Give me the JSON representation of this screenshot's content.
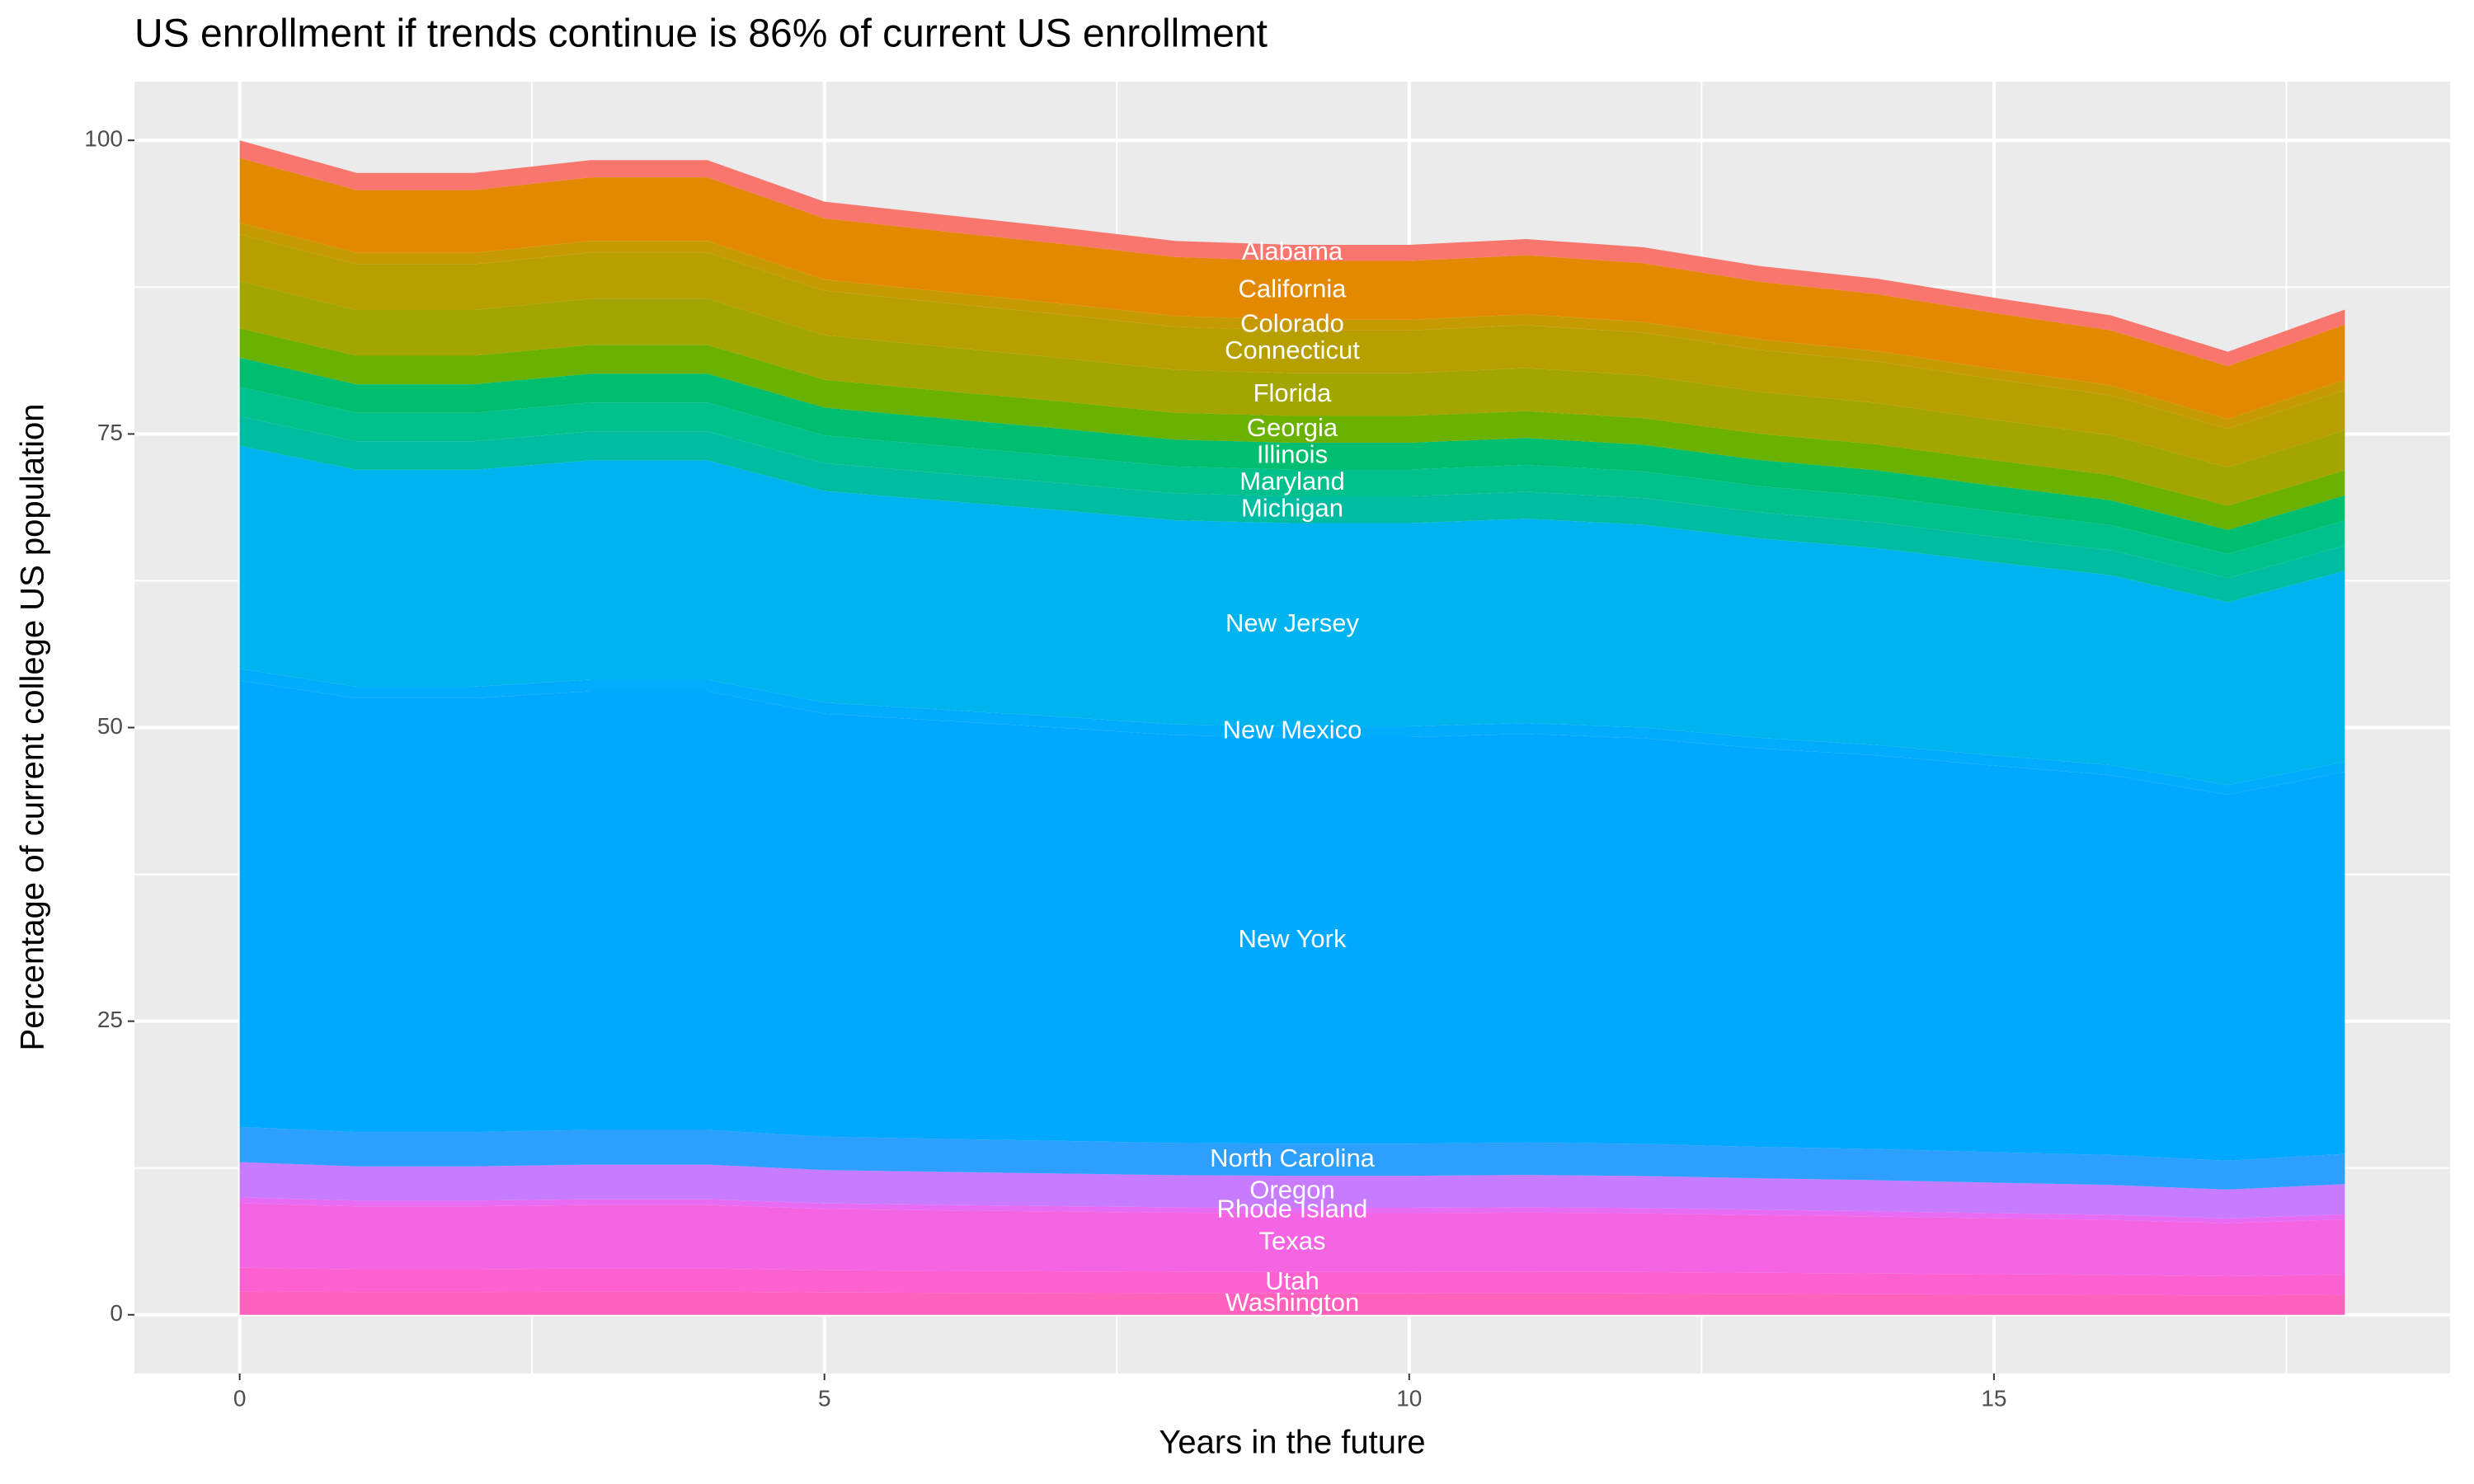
{
  "chart_data": {
    "type": "stacked_area",
    "title": "US enrollment if trends continue is 86% of current US enrollment",
    "x_label": "Years in the future",
    "y_label": "Percentage of current college US population",
    "x": [
      0,
      1,
      2,
      3,
      4,
      5,
      6,
      7,
      8,
      9,
      10,
      11,
      12,
      13,
      14,
      15,
      16,
      17,
      18
    ],
    "xlim": [
      -0.9,
      18.9
    ],
    "xticks": [
      0,
      5,
      10,
      15
    ],
    "ylim": [
      -5,
      105
    ],
    "yticks": [
      0,
      25,
      50,
      75,
      100
    ],
    "grid": true,
    "label_x": 9,
    "series": [
      {
        "name": "Washington",
        "color": "#FF62BC",
        "values": [
          2,
          1.94,
          1.94,
          1.97,
          1.97,
          1.9,
          1.87,
          1.85,
          1.83,
          1.82,
          1.82,
          1.83,
          1.82,
          1.79,
          1.76,
          1.73,
          1.7,
          1.64,
          1.71
        ]
      },
      {
        "name": "Utah",
        "color": "#FD61D1",
        "values": [
          2,
          1.94,
          1.94,
          1.97,
          1.97,
          1.9,
          1.87,
          1.85,
          1.83,
          1.82,
          1.82,
          1.83,
          1.82,
          1.79,
          1.76,
          1.73,
          1.7,
          1.64,
          1.71
        ]
      },
      {
        "name": "Texas",
        "color": "#F564E3",
        "values": [
          5.5,
          5.35,
          5.35,
          5.41,
          5.41,
          5.21,
          5.15,
          5.09,
          5.03,
          5.01,
          5.01,
          5.04,
          5,
          4.91,
          4.85,
          4.76,
          4.68,
          4.51,
          4.71
        ]
      },
      {
        "name": "Rhode Island",
        "color": "#E76BF3",
        "values": [
          0.5,
          0.49,
          0.49,
          0.49,
          0.49,
          0.47,
          0.47,
          0.46,
          0.46,
          0.46,
          0.46,
          0.46,
          0.45,
          0.45,
          0.44,
          0.43,
          0.43,
          0.41,
          0.43
        ]
      },
      {
        "name": "Oregon",
        "color": "#C77CFF",
        "values": [
          3,
          2.92,
          2.92,
          2.95,
          2.95,
          2.84,
          2.81,
          2.78,
          2.74,
          2.73,
          2.73,
          2.75,
          2.73,
          2.68,
          2.65,
          2.6,
          2.55,
          2.46,
          2.57
        ]
      },
      {
        "name": "North Carolina",
        "color": "#2C9FFF",
        "values": [
          3,
          2.92,
          2.92,
          2.95,
          2.95,
          2.84,
          2.81,
          2.78,
          2.74,
          2.73,
          2.73,
          2.75,
          2.73,
          2.68,
          2.65,
          2.6,
          2.55,
          2.46,
          2.57
        ]
      },
      {
        "name": "New York",
        "color": "#00A9FF",
        "values": [
          38,
          36.94,
          36.94,
          37.35,
          37.35,
          36.02,
          35.61,
          35.19,
          34.73,
          34.62,
          34.62,
          34.81,
          34.54,
          33.93,
          33.52,
          32.91,
          32.34,
          31.16,
          32.53
        ]
      },
      {
        "name": "New Mexico",
        "color": "#00ACFB",
        "values": [
          1,
          0.972,
          0.972,
          0.983,
          0.983,
          0.948,
          0.937,
          0.926,
          0.914,
          0.911,
          0.911,
          0.916,
          0.909,
          0.893,
          0.882,
          0.866,
          0.851,
          0.82,
          0.856
        ]
      },
      {
        "name": "New Jersey",
        "color": "#00B4EF",
        "values": [
          19,
          18.47,
          18.47,
          18.68,
          18.68,
          18.01,
          17.8,
          17.59,
          17.37,
          17.31,
          17.31,
          17.4,
          17.27,
          16.97,
          16.76,
          16.45,
          16.17,
          15.58,
          16.26
        ]
      },
      {
        "name": "Michigan",
        "color": "#00BCA0",
        "values": [
          2.5,
          2.43,
          2.43,
          2.46,
          2.46,
          2.37,
          2.34,
          2.32,
          2.29,
          2.28,
          2.28,
          2.29,
          2.27,
          2.23,
          2.21,
          2.17,
          2.13,
          2.05,
          2.14
        ]
      },
      {
        "name": "Maryland",
        "color": "#00C08B",
        "values": [
          2.5,
          2.43,
          2.43,
          2.46,
          2.46,
          2.37,
          2.34,
          2.32,
          2.29,
          2.28,
          2.28,
          2.29,
          2.27,
          2.23,
          2.21,
          2.17,
          2.13,
          2.05,
          2.14
        ]
      },
      {
        "name": "Illinois",
        "color": "#00BE70",
        "values": [
          2.5,
          2.43,
          2.43,
          2.46,
          2.46,
          2.37,
          2.34,
          2.32,
          2.29,
          2.28,
          2.28,
          2.29,
          2.27,
          2.23,
          2.21,
          2.17,
          2.13,
          2.05,
          2.14
        ]
      },
      {
        "name": "Georgia",
        "color": "#6BB100",
        "values": [
          2.5,
          2.43,
          2.43,
          2.46,
          2.46,
          2.37,
          2.34,
          2.32,
          2.29,
          2.28,
          2.28,
          2.29,
          2.27,
          2.23,
          2.21,
          2.17,
          2.13,
          2.05,
          2.14
        ]
      },
      {
        "name": "Florida",
        "color": "#A3A500",
        "values": [
          4,
          3.89,
          3.89,
          3.93,
          3.93,
          3.79,
          3.75,
          3.7,
          3.66,
          3.64,
          3.64,
          3.66,
          3.64,
          3.57,
          3.53,
          3.46,
          3.4,
          3.28,
          3.42
        ]
      },
      {
        "name": "Connecticut",
        "color": "#B79F00",
        "values": [
          4,
          3.89,
          3.89,
          3.93,
          3.93,
          3.79,
          3.75,
          3.7,
          3.66,
          3.64,
          3.64,
          3.66,
          3.64,
          3.57,
          3.53,
          3.46,
          3.4,
          3.28,
          3.42
        ]
      },
      {
        "name": "Colorado",
        "color": "#C49A00",
        "values": [
          1,
          0.972,
          0.972,
          0.983,
          0.983,
          0.948,
          0.937,
          0.926,
          0.914,
          0.911,
          0.911,
          0.916,
          0.909,
          0.893,
          0.882,
          0.866,
          0.851,
          0.82,
          0.856
        ]
      },
      {
        "name": "California",
        "color": "#E38900",
        "values": [
          5.5,
          5.35,
          5.35,
          5.41,
          5.41,
          5.21,
          5.15,
          5.09,
          5.03,
          5.01,
          5.01,
          5.04,
          5,
          4.91,
          4.85,
          4.76,
          4.68,
          4.51,
          4.71
        ]
      },
      {
        "name": "Alabama",
        "color": "#F8766D",
        "values": [
          1.5,
          1.46,
          1.46,
          1.47,
          1.47,
          1.42,
          1.41,
          1.39,
          1.37,
          1.37,
          1.37,
          1.37,
          1.36,
          1.34,
          1.32,
          1.3,
          1.28,
          1.23,
          1.28
        ]
      }
    ]
  }
}
